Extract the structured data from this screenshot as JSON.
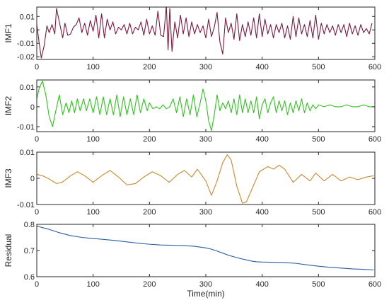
{
  "colors": {
    "imf1": "#7b1a3c",
    "imf1_overlay": "#c2185b",
    "imf2": "#2ec41b",
    "imf3": "#c78a2c",
    "residual": "#2a5d9f",
    "axis": "#262626"
  },
  "chart_data": [
    {
      "type": "line",
      "ylabel": "IMF1",
      "xlabel": "",
      "xlim": [
        0,
        600
      ],
      "ylim": [
        -0.022,
        0.017
      ],
      "xticks": [
        0,
        100,
        200,
        300,
        400,
        500,
        600
      ],
      "yticks": [
        -0.02,
        -0.01,
        0,
        0.01
      ],
      "ytick_labels": [
        "-0.02",
        "-0.01",
        "0",
        "0.01"
      ],
      "color_key": "imf1",
      "series": [
        {
          "x": [
            0,
            4,
            8,
            13,
            18,
            22,
            27,
            32,
            35,
            40,
            46,
            50,
            55,
            60,
            65,
            70,
            75,
            80,
            85,
            90,
            95,
            100,
            105,
            110,
            115,
            120,
            125,
            130,
            135,
            140,
            145,
            150,
            155,
            160,
            165,
            170,
            175,
            180,
            185,
            190,
            195,
            200,
            205,
            210,
            215,
            220,
            225,
            230,
            233,
            236,
            240,
            245,
            250,
            255,
            260,
            265,
            270,
            275,
            280,
            285,
            290,
            295,
            300,
            305,
            310,
            315,
            320,
            325,
            330,
            335,
            340,
            345,
            350,
            355,
            360,
            365,
            370,
            375,
            380,
            385,
            390,
            395,
            400,
            405,
            410,
            415,
            420,
            425,
            430,
            435,
            440,
            445,
            450,
            455,
            460,
            465,
            470,
            475,
            480,
            485,
            490,
            495,
            500,
            505,
            510,
            515,
            520,
            525,
            530,
            535,
            540,
            545,
            550,
            555,
            560,
            565,
            570,
            575,
            580,
            585,
            590,
            595
          ],
          "y": [
            0.004,
            -0.009,
            -0.021,
            -0.012,
            0.003,
            -0.002,
            0.004,
            -0.003,
            0.016,
            0.006,
            -0.006,
            0.005,
            -0.004,
            -0.003,
            0.002,
            0.004,
            0.009,
            -0.002,
            0.005,
            -0.004,
            0.007,
            -0.001,
            0.011,
            -0.006,
            0.012,
            -0.006,
            0.008,
            0,
            0.006,
            -0.003,
            0.002,
            0,
            0.004,
            -0.003,
            0.005,
            -0.003,
            0.002,
            0,
            0.006,
            -0.004,
            0.008,
            -0.003,
            0.003,
            -0.004,
            0.014,
            -0.004,
            -0.005,
            0.018,
            -0.015,
            0.016,
            -0.016,
            0.006,
            -0.006,
            0.011,
            -0.003,
            0.009,
            -0.005,
            0.006,
            -0.003,
            0.004,
            -0.002,
            0.003,
            -0.006,
            0.008,
            -0.005,
            0.002,
            0.013,
            -0.009,
            -0.018,
            0.009,
            -0.002,
            0.005,
            -0.007,
            0.012,
            -0.008,
            0.004,
            -0.005,
            0.006,
            -0.004,
            0.009,
            -0.006,
            0.012,
            -0.005,
            0.008,
            -0.003,
            0.004,
            -0.006,
            0.004,
            -0.002,
            0.005,
            -0.006,
            0.003,
            -0.007,
            0.01,
            -0.005,
            0.009,
            -0.003,
            0.004,
            -0.005,
            0.007,
            -0.006,
            0.011,
            -0.007,
            0.005,
            -0.003,
            0.004,
            -0.002,
            0.003,
            -0.004,
            0.004,
            -0.002,
            0.004,
            -0.005,
            0.005,
            -0.003,
            0.003,
            -0.004,
            0.004,
            -0.002,
            0.001,
            -0.003,
            0.005
          ]
        }
      ]
    },
    {
      "type": "line",
      "ylabel": "IMF2",
      "xlabel": "",
      "xlim": [
        0,
        600
      ],
      "ylim": [
        -0.0125,
        0.0135
      ],
      "xticks": [
        0,
        100,
        200,
        300,
        400,
        500,
        600
      ],
      "yticks": [
        -0.01,
        0,
        0.01
      ],
      "ytick_labels": [
        "-0.01",
        "0",
        "0.01"
      ],
      "color_key": "imf2",
      "series": [
        {
          "x": [
            0,
            4,
            10,
            16,
            22,
            28,
            33,
            40,
            46,
            52,
            57,
            62,
            67,
            72,
            77,
            83,
            88,
            94,
            100,
            106,
            112,
            118,
            124,
            130,
            136,
            142,
            148,
            154,
            160,
            166,
            172,
            178,
            184,
            190,
            196,
            200,
            206,
            212,
            218,
            224,
            230,
            236,
            242,
            248,
            254,
            260,
            266,
            272,
            278,
            284,
            290,
            295,
            300,
            305,
            310,
            315,
            320,
            325,
            330,
            335,
            340,
            345,
            350,
            355,
            360,
            365,
            370,
            375,
            380,
            385,
            390,
            395,
            400,
            405,
            410,
            415,
            420,
            425,
            430,
            435,
            440,
            445,
            450,
            455,
            460,
            465,
            470,
            475,
            480,
            485,
            490,
            495,
            500,
            510,
            520,
            530,
            540,
            550,
            560,
            570,
            580,
            590,
            598
          ],
          "y": [
            0.004,
            0.009,
            0.013,
            0.006,
            -0.005,
            -0.01,
            -0.003,
            0.006,
            -0.004,
            0.002,
            -0.003,
            0.003,
            -0.003,
            0.004,
            -0.002,
            0.004,
            -0.002,
            0.004,
            -0.003,
            0.005,
            -0.004,
            0.005,
            -0.004,
            0.004,
            -0.004,
            0.006,
            -0.005,
            0.005,
            -0.004,
            0.004,
            -0.004,
            0.006,
            -0.003,
            0.004,
            -0.002,
            0.002,
            -0.001,
            0,
            -0.001,
            0.001,
            -0.001,
            0,
            0.004,
            -0.003,
            0.005,
            -0.005,
            0.004,
            -0.004,
            0.006,
            -0.005,
            0.002,
            0.009,
            0.003,
            -0.007,
            -0.012,
            -0.004,
            0.006,
            -0.002,
            0.002,
            -0.001,
            0.003,
            -0.003,
            0.004,
            -0.004,
            0.006,
            -0.003,
            0.004,
            -0.003,
            0.003,
            -0.003,
            0.005,
            -0.006,
            0.001,
            0.004,
            -0.003,
            0.002,
            0.005,
            -0.003,
            0.003,
            -0.002,
            0.003,
            -0.004,
            0.002,
            -0.003,
            0.003,
            -0.002,
            0.004,
            -0.003,
            0.002,
            -0.002,
            0.001,
            -0.001,
            0.001,
            0,
            0.001,
            0,
            0,
            0.001,
            0,
            0,
            0.001,
            0,
            0
          ]
        }
      ]
    },
    {
      "type": "line",
      "ylabel": "IMF3",
      "xlabel": "",
      "xlim": [
        0,
        600
      ],
      "ylim": [
        -0.01,
        0.01
      ],
      "xticks": [
        0,
        100,
        200,
        300,
        400,
        500,
        600
      ],
      "yticks": [
        -0.01,
        0,
        0.01
      ],
      "ytick_labels": [
        "-0.01",
        "0",
        "0.01"
      ],
      "color_key": "imf3",
      "series": [
        {
          "x": [
            0,
            10,
            20,
            35,
            45,
            60,
            72,
            85,
            100,
            115,
            130,
            145,
            160,
            175,
            190,
            205,
            220,
            235,
            250,
            262,
            275,
            285,
            300,
            310,
            320,
            330,
            338,
            345,
            355,
            365,
            372,
            380,
            395,
            410,
            420,
            430,
            440,
            455,
            470,
            485,
            495,
            510,
            525,
            540,
            555,
            570,
            585,
            598
          ],
          "y": [
            0.0015,
            0.001,
            0,
            -0.002,
            -0.0015,
            0.001,
            0.0025,
            0.001,
            -0.0015,
            0.001,
            0.003,
            0.0005,
            -0.0025,
            -0.002,
            0.0005,
            0.0025,
            0.001,
            -0.0015,
            0.0015,
            0.003,
            0.0005,
            0.0035,
            -0.001,
            -0.0065,
            -0.001,
            0.006,
            0.009,
            0.007,
            -0.003,
            -0.0095,
            -0.009,
            -0.005,
            0.0025,
            0.0045,
            0.0035,
            0.005,
            0.0035,
            -0.0015,
            0.0015,
            -0.001,
            0.002,
            -0.001,
            0.0015,
            -0.001,
            0.0005,
            -0.0005,
            0.0005,
            0.001
          ]
        }
      ]
    },
    {
      "type": "line",
      "ylabel": "Residual",
      "xlabel": "Time(min)",
      "xlim": [
        0,
        600
      ],
      "ylim": [
        0.6,
        0.8
      ],
      "xticks": [
        0,
        100,
        200,
        300,
        400,
        500,
        600
      ],
      "yticks": [
        0.6,
        0.7,
        0.8
      ],
      "ytick_labels": [
        "0.6",
        "0.7",
        "0.8"
      ],
      "color_key": "residual",
      "series": [
        {
          "x": [
            0,
            20,
            40,
            60,
            80,
            100,
            120,
            140,
            160,
            180,
            200,
            220,
            240,
            260,
            280,
            300,
            310,
            320,
            330,
            340,
            350,
            360,
            370,
            380,
            390,
            400,
            420,
            440,
            460,
            480,
            500,
            520,
            540,
            560,
            580,
            598
          ],
          "y": [
            0.793,
            0.782,
            0.768,
            0.757,
            0.75,
            0.746,
            0.742,
            0.738,
            0.733,
            0.728,
            0.724,
            0.721,
            0.72,
            0.719,
            0.716,
            0.71,
            0.705,
            0.698,
            0.69,
            0.682,
            0.676,
            0.67,
            0.665,
            0.66,
            0.657,
            0.656,
            0.655,
            0.654,
            0.651,
            0.645,
            0.64,
            0.636,
            0.633,
            0.63,
            0.628,
            0.626
          ]
        }
      ]
    }
  ]
}
